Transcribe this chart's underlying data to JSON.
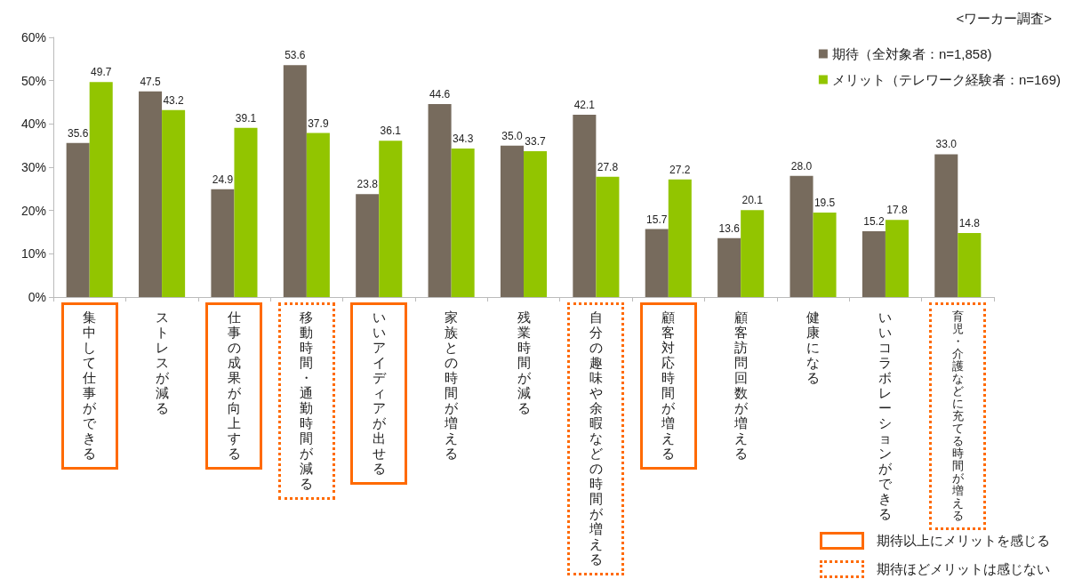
{
  "chart_data": {
    "type": "bar",
    "title": "<ワーカー調査>",
    "categories": [
      "集中して仕事ができる",
      "ストレスが減る",
      "仕事の成果が向上する",
      "移動時間・通勤時間が減る",
      "いいアイディアが出せる",
      "家族との時間が増える",
      "残業時間が減る",
      "自分の趣味や余暇などの時間が増える",
      "顧客対応時間が増える",
      "顧客訪問回数が増える",
      "健康になる",
      "いいコラボレーションができる",
      "育児・介護などに充てる時間が増える"
    ],
    "series": [
      {
        "name": "期待（全対象者：n=1,858)",
        "color": "#776b5d",
        "values": [
          35.6,
          47.5,
          24.9,
          53.6,
          23.8,
          44.6,
          35.0,
          42.1,
          15.7,
          13.6,
          28.0,
          15.2,
          33.0
        ],
        "value_labels": [
          "35.6",
          "47.5",
          "24.9",
          "53.6",
          "23.8",
          "44.6",
          "35.0",
          "42.1",
          "15.7",
          "13.6",
          "28.0",
          "15.2",
          "33.0"
        ]
      },
      {
        "name": "メリット（テレワーク経験者：n=169)",
        "color": "#92c500",
        "values": [
          49.7,
          43.2,
          39.1,
          37.9,
          36.1,
          34.3,
          33.7,
          27.8,
          27.2,
          20.1,
          19.5,
          17.8,
          14.8
        ],
        "value_labels": [
          "49.7",
          "43.2",
          "39.1",
          "37.9",
          "36.1",
          "34.3",
          "33.7",
          "27.8",
          "27.2",
          "20.1",
          "19.5",
          "17.8",
          "14.8"
        ]
      }
    ],
    "ylim": [
      0,
      60
    ],
    "yticks": [
      {
        "value": 0,
        "label": "0%"
      },
      {
        "value": 10,
        "label": "10%"
      },
      {
        "value": 20,
        "label": "20%"
      },
      {
        "value": 30,
        "label": "30%"
      },
      {
        "value": 40,
        "label": "40%"
      },
      {
        "value": 50,
        "label": "50%"
      },
      {
        "value": 60,
        "label": "60%"
      }
    ],
    "grid": false,
    "legend": "top right",
    "annotations": [
      "期待以上にメリットを感じる",
      "期待ほどメリットは感じない"
    ]
  }
}
